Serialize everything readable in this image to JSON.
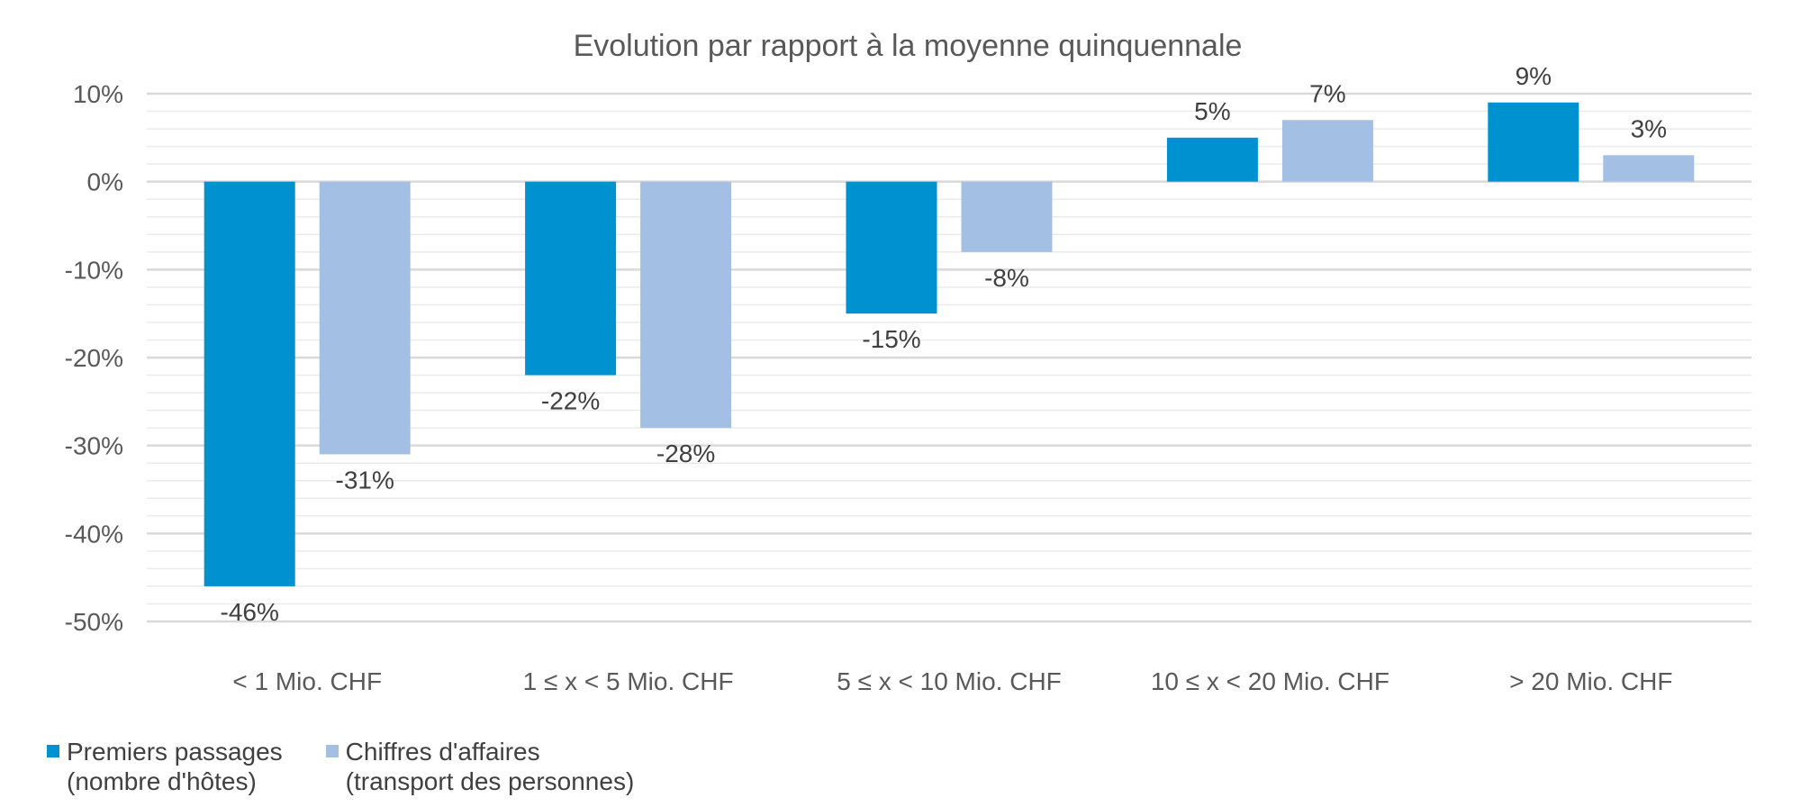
{
  "chart_data": {
    "type": "bar",
    "title": "Evolution par rapport à la moyenne quinquennale",
    "categories": [
      "< 1 Mio. CHF",
      "1 ≤ x < 5 Mio. CHF",
      "5 ≤ x < 10 Mio. CHF",
      "10 ≤ x < 20 Mio. CHF",
      "> 20 Mio. CHF"
    ],
    "series": [
      {
        "name": "Premiers passages (nombre d'hôtes)",
        "legend_lines": [
          "Premiers passages",
          "(nombre d'hôtes)"
        ],
        "color": "#0091D0",
        "values": [
          -46,
          -22,
          -15,
          5,
          9
        ],
        "labels": [
          "-46%",
          "-22%",
          "-15%",
          "5%",
          "9%"
        ]
      },
      {
        "name": "Chiffres d'affaires (transport des personnes)",
        "legend_lines": [
          "Chiffres d'affaires",
          "(transport des personnes)"
        ],
        "color": "#A3BFE3",
        "values": [
          -31,
          -28,
          -8,
          7,
          3
        ],
        "labels": [
          "-31%",
          "-28%",
          "-8%",
          "7%",
          "3%"
        ]
      }
    ],
    "ylim": [
      -50,
      10
    ],
    "yticks": [
      10,
      0,
      -10,
      -20,
      -30,
      -40,
      -50
    ],
    "ytick_labels": [
      "10%",
      "0%",
      "-10%",
      "-20%",
      "-30%",
      "-40%",
      "-50%"
    ],
    "grid": true,
    "legend_position": "bottom-left"
  }
}
